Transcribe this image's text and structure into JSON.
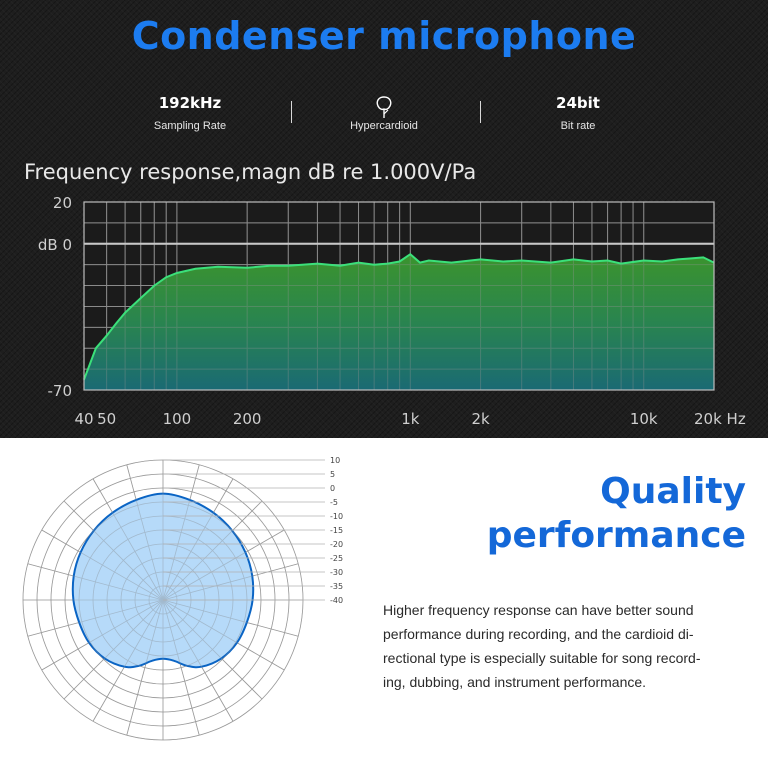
{
  "header": {
    "title": "Condenser microphone",
    "specs": [
      {
        "value": "192kHz",
        "label": "Sampling Rate"
      },
      {
        "icon": "hypercardioid-icon",
        "label": "Hypercardioid"
      },
      {
        "value": "24bit",
        "label": "Bit rate"
      }
    ]
  },
  "frequency_chart": {
    "title": "Frequency response,magn dB re 1.000V/Pa",
    "y_ticks": [
      {
        "value": 20,
        "label": "20"
      },
      {
        "value": 0,
        "label": "dB  0"
      },
      {
        "value": -70,
        "label": "-70"
      }
    ],
    "x_ticks": [
      {
        "value": 40,
        "label": "40"
      },
      {
        "value": 50,
        "label": "50"
      },
      {
        "value": 100,
        "label": "100"
      },
      {
        "value": 200,
        "label": "200"
      },
      {
        "value": 1000,
        "label": "1k"
      },
      {
        "value": 2000,
        "label": "2k"
      },
      {
        "value": 10000,
        "label": "10k"
      },
      {
        "value": 20000,
        "label": "20k Hz"
      }
    ]
  },
  "chart_data": [
    {
      "type": "area",
      "title": "Frequency response,magn dB re 1.000V/Pa",
      "xlabel": "Hz",
      "ylabel": "dB",
      "x_scale": "log",
      "xlim": [
        40,
        20000
      ],
      "ylim": [
        -70,
        20
      ],
      "grid": true,
      "x": [
        40,
        45,
        50,
        55,
        60,
        70,
        80,
        90,
        100,
        120,
        150,
        200,
        250,
        300,
        400,
        500,
        600,
        700,
        800,
        900,
        1000,
        1100,
        1200,
        1500,
        2000,
        2500,
        3000,
        4000,
        5000,
        6000,
        7000,
        8000,
        10000,
        12000,
        14000,
        16000,
        18000,
        20000
      ],
      "values": [
        -65,
        -50,
        -44,
        -38,
        -33,
        -26,
        -20,
        -16,
        -14,
        -12,
        -11,
        -11.5,
        -10.5,
        -10.5,
        -9.5,
        -10.5,
        -9,
        -10,
        -9.5,
        -8.5,
        -5,
        -9,
        -8,
        -9,
        -7.5,
        -8.5,
        -8,
        -9,
        -7.5,
        -8.5,
        -8,
        -9.5,
        -8,
        -8.5,
        -7.5,
        -7,
        -6.5,
        -9
      ]
    },
    {
      "type": "polar",
      "title": "",
      "r_ticks": [
        10,
        5,
        0,
        -5,
        -10,
        -15,
        -20,
        -25,
        -30,
        -35,
        -40
      ],
      "angles_deg": [
        0,
        15,
        30,
        45,
        60,
        75,
        90,
        105,
        120,
        135,
        150,
        160,
        170,
        180,
        190,
        200,
        210,
        225,
        240,
        255,
        270,
        285,
        300,
        315,
        330,
        345
      ],
      "values_db": [
        -2,
        -3,
        -4,
        -5,
        -6,
        -7,
        -8,
        -9,
        -9.5,
        -10.5,
        -12.5,
        -15,
        -18,
        -19,
        -18,
        -15,
        -12.5,
        -10.5,
        -9.5,
        -9,
        -8,
        -7,
        -6,
        -5,
        -4,
        -3
      ]
    }
  ],
  "polar_chart": {
    "r_ticks": [
      "10",
      "5",
      "0",
      "-5",
      "-10",
      "-15",
      "-20",
      "-25",
      "-30",
      "-35",
      "-40"
    ]
  },
  "quality": {
    "title_line1": "Quality",
    "title_line2": "performance",
    "desc_lines": [
      "Higher frequency response can have better sound",
      "performance during recording, and the cardioid di-",
      "rectional type is especially suitable for song record-",
      "ing, dubbing, and instrument performance."
    ]
  },
  "colors": {
    "title_blue": "#1c7cf0",
    "quality_blue": "#1468d8",
    "curve_green": "#3be07a",
    "polar_fill": "#a9d3f8",
    "polar_stroke": "#0a64c4"
  }
}
